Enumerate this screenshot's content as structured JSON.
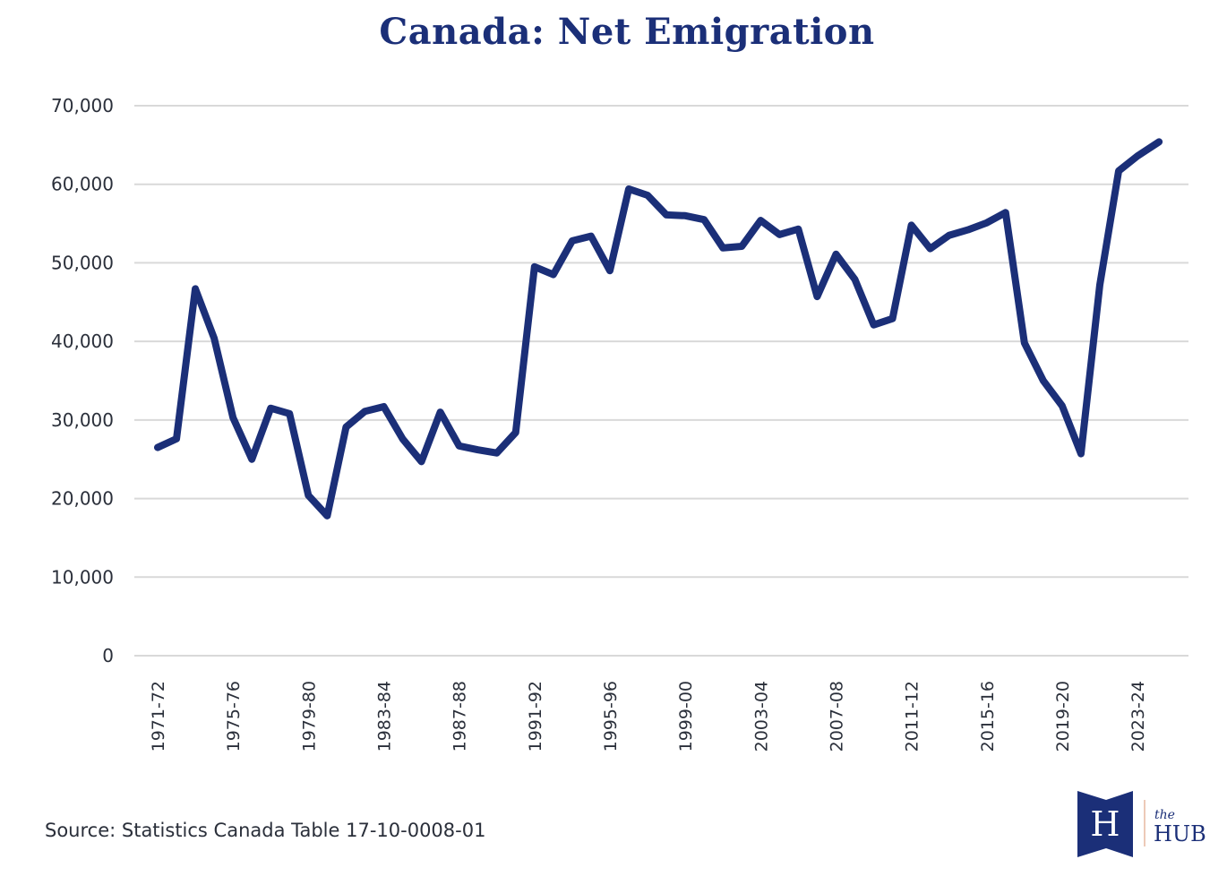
{
  "chart_data": {
    "type": "line",
    "title": "Canada: Net Emigration",
    "xlabel": "",
    "ylabel": "",
    "ylim": [
      0,
      70000
    ],
    "yticks": [
      0,
      10000,
      20000,
      30000,
      40000,
      50000,
      60000,
      70000
    ],
    "ytick_labels": [
      "0",
      "10,000",
      "20,000",
      "30,000",
      "40,000",
      "50,000",
      "60,000",
      "70,000"
    ],
    "grid": true,
    "x": [
      "1971-72",
      "1972-73",
      "1973-74",
      "1974-75",
      "1975-76",
      "1976-77",
      "1977-78",
      "1978-79",
      "1979-80",
      "1980-81",
      "1981-82",
      "1982-83",
      "1983-84",
      "1984-85",
      "1985-86",
      "1986-87",
      "1987-88",
      "1988-89",
      "1989-90",
      "1990-91",
      "1991-92",
      "1992-93",
      "1993-94",
      "1994-95",
      "1995-96",
      "1996-97",
      "1997-98",
      "1998-99",
      "1999-00",
      "2000-01",
      "2001-02",
      "2002-03",
      "2003-04",
      "2004-05",
      "2005-06",
      "2006-07",
      "2007-08",
      "2008-09",
      "2009-10",
      "2010-11",
      "2011-12",
      "2012-13",
      "2013-14",
      "2014-15",
      "2015-16",
      "2016-17",
      "2017-18",
      "2018-19",
      "2019-20",
      "2020-21",
      "2021-22",
      "2022-23",
      "2023-24",
      "2024-25"
    ],
    "xtick_labels": [
      "1971-72",
      "1975-76",
      "1979-80",
      "1983-84",
      "1987-88",
      "1991-92",
      "1995-96",
      "1999-00",
      "2003-04",
      "2007-08",
      "2011-12",
      "2015-16",
      "2019-20",
      "2023-24"
    ],
    "series": [
      {
        "name": "Net Emigration",
        "color": "#1b2f78",
        "values": [
          26500,
          27600,
          46700,
          40400,
          30300,
          25000,
          31500,
          30800,
          20400,
          17800,
          29100,
          31100,
          31700,
          27600,
          24700,
          31000,
          26700,
          26200,
          25800,
          28400,
          49500,
          48500,
          52800,
          53400,
          49000,
          59400,
          58600,
          56100,
          56000,
          55500,
          51900,
          52100,
          55400,
          53600,
          54300,
          45700,
          51100,
          47900,
          42100,
          42900,
          54800,
          51800,
          53500,
          54200,
          55100,
          56400,
          39800,
          35000,
          31800,
          25700,
          47200,
          61700,
          63600,
          65400
        ]
      }
    ]
  },
  "source": "Source: Statistics Canada Table 17-10-0008-01",
  "logo": {
    "mark": "H",
    "the": "the",
    "name": "HUB"
  }
}
